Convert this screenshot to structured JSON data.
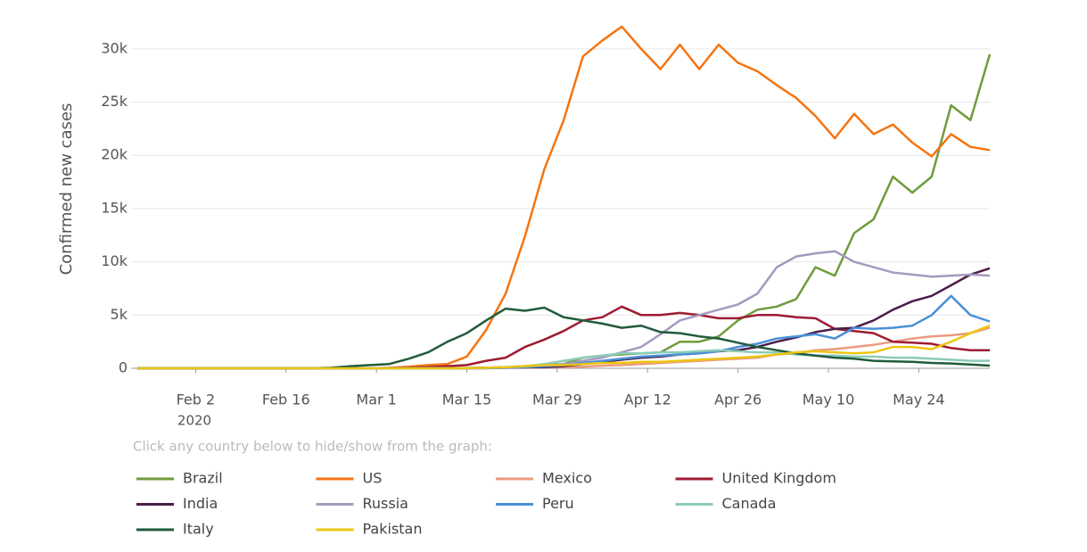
{
  "chart_data": {
    "type": "line",
    "y_label": "Confirmed new cases",
    "legend_hint": "Click any country below to hide/show from the graph:",
    "x_year_label": "2020",
    "x": [
      "2020-01-24",
      "2020-01-27",
      "2020-01-30",
      "2020-02-02",
      "2020-02-05",
      "2020-02-08",
      "2020-02-11",
      "2020-02-14",
      "2020-02-17",
      "2020-02-20",
      "2020-02-23",
      "2020-02-26",
      "2020-02-29",
      "2020-03-03",
      "2020-03-06",
      "2020-03-09",
      "2020-03-12",
      "2020-03-15",
      "2020-03-18",
      "2020-03-21",
      "2020-03-24",
      "2020-03-27",
      "2020-03-30",
      "2020-04-02",
      "2020-04-05",
      "2020-04-08",
      "2020-04-11",
      "2020-04-14",
      "2020-04-17",
      "2020-04-20",
      "2020-04-23",
      "2020-04-26",
      "2020-04-29",
      "2020-05-02",
      "2020-05-05",
      "2020-05-08",
      "2020-05-11",
      "2020-05-14",
      "2020-05-17",
      "2020-05-20",
      "2020-05-23",
      "2020-05-26",
      "2020-05-29",
      "2020-06-01",
      "2020-06-04"
    ],
    "xlim": [
      "2020-01-23",
      "2020-06-04"
    ],
    "xticks": [
      {
        "value": "2020-02-02",
        "label": "Feb 2"
      },
      {
        "value": "2020-02-16",
        "label": "Feb 16"
      },
      {
        "value": "2020-03-01",
        "label": "Mar 1"
      },
      {
        "value": "2020-03-15",
        "label": "Mar 15"
      },
      {
        "value": "2020-03-29",
        "label": "Mar 29"
      },
      {
        "value": "2020-04-12",
        "label": "Apr 12"
      },
      {
        "value": "2020-04-26",
        "label": "Apr 26"
      },
      {
        "value": "2020-05-10",
        "label": "May 10"
      },
      {
        "value": "2020-05-24",
        "label": "May 24"
      }
    ],
    "ylim": [
      0,
      32500
    ],
    "yticks": [
      0,
      {
        "value": 5000,
        "label": "5k"
      },
      {
        "value": 10000,
        "label": "10k"
      },
      {
        "value": 15000,
        "label": "15k"
      },
      {
        "value": 20000,
        "label": "20k"
      },
      {
        "value": 25000,
        "label": "25k"
      },
      {
        "value": 30000,
        "label": "30k"
      }
    ],
    "grid": true,
    "series": [
      {
        "name": "Brazil",
        "color": "#6f9b3c",
        "values": [
          0,
          0,
          0,
          0,
          0,
          0,
          0,
          0,
          0,
          0,
          0,
          0,
          0,
          0,
          0,
          10,
          20,
          30,
          50,
          100,
          200,
          300,
          400,
          1000,
          1200,
          1300,
          1400,
          1500,
          2500,
          2500,
          3000,
          4500,
          5500,
          5800,
          6500,
          9500,
          8700,
          12700,
          14000,
          18000,
          16500,
          18000,
          24700,
          23300,
          29500
        ]
      },
      {
        "name": "US",
        "color": "#f57410",
        "values": [
          0,
          0,
          0,
          0,
          0,
          0,
          0,
          0,
          0,
          0,
          0,
          0,
          0,
          50,
          150,
          300,
          400,
          1100,
          3600,
          7000,
          12400,
          18700,
          23300,
          29300,
          30800,
          32100,
          30000,
          28100,
          30400,
          28100,
          30400,
          28700,
          27900,
          26600,
          25400,
          23700,
          21600,
          23900,
          22000,
          22900,
          21200,
          19900,
          22000,
          20800,
          20500
        ]
      },
      {
        "name": "Mexico",
        "color": "#ec9a80",
        "values": [
          0,
          0,
          0,
          0,
          0,
          0,
          0,
          0,
          0,
          0,
          0,
          0,
          0,
          0,
          0,
          0,
          0,
          0,
          10,
          30,
          50,
          80,
          100,
          150,
          250,
          300,
          400,
          500,
          600,
          700,
          800,
          900,
          1000,
          1300,
          1400,
          1700,
          1800,
          2000,
          2200,
          2500,
          2800,
          3000,
          3100,
          3300,
          3800
        ]
      },
      {
        "name": "United Kingdom",
        "color": "#9e1b32",
        "values": [
          0,
          0,
          0,
          0,
          0,
          0,
          0,
          0,
          0,
          0,
          0,
          0,
          0,
          20,
          50,
          100,
          200,
          300,
          700,
          1000,
          2000,
          2700,
          3500,
          4500,
          4800,
          5800,
          5000,
          5000,
          5200,
          5000,
          4700,
          4700,
          5000,
          5000,
          4800,
          4700,
          3700,
          3500,
          3300,
          2500,
          2400,
          2300,
          1900,
          1700,
          1700
        ]
      },
      {
        "name": "India",
        "color": "#4b1d47",
        "values": [
          0,
          0,
          0,
          0,
          0,
          0,
          0,
          0,
          0,
          0,
          0,
          0,
          0,
          0,
          0,
          5,
          10,
          20,
          40,
          60,
          80,
          100,
          200,
          400,
          600,
          800,
          1000,
          1100,
          1300,
          1400,
          1600,
          1700,
          2000,
          2500,
          2900,
          3400,
          3700,
          3800,
          4500,
          5500,
          6300,
          6800,
          7800,
          8800,
          9400
        ]
      },
      {
        "name": "Russia",
        "color": "#a59ac0",
        "values": [
          0,
          0,
          0,
          0,
          0,
          0,
          0,
          0,
          0,
          0,
          0,
          0,
          0,
          0,
          0,
          0,
          0,
          0,
          10,
          50,
          100,
          200,
          400,
          700,
          1000,
          1500,
          2000,
          3200,
          4500,
          5000,
          5500,
          6000,
          7000,
          9500,
          10500,
          10800,
          11000,
          10000,
          9500,
          9000,
          8800,
          8600,
          8700,
          8800,
          8700
        ]
      },
      {
        "name": "Peru",
        "color": "#4a90d9",
        "values": [
          0,
          0,
          0,
          0,
          0,
          0,
          0,
          0,
          0,
          0,
          0,
          0,
          0,
          0,
          0,
          0,
          0,
          0,
          10,
          50,
          100,
          200,
          300,
          500,
          700,
          900,
          1100,
          1200,
          1300,
          1400,
          1600,
          2000,
          2300,
          2800,
          3000,
          3200,
          2800,
          3800,
          3700,
          3800,
          4000,
          5000,
          6800,
          5000,
          4400
        ]
      },
      {
        "name": "Canada",
        "color": "#8ccbb8",
        "values": [
          0,
          0,
          0,
          0,
          0,
          0,
          0,
          0,
          0,
          0,
          0,
          0,
          0,
          0,
          0,
          0,
          5,
          10,
          30,
          100,
          200,
          400,
          700,
          1000,
          1200,
          1400,
          1400,
          1500,
          1500,
          1600,
          1700,
          1600,
          1500,
          1500,
          1300,
          1200,
          1200,
          1100,
          1100,
          1000,
          1000,
          900,
          800,
          700,
          700
        ]
      },
      {
        "name": "Italy",
        "color": "#215b3c",
        "values": [
          0,
          0,
          0,
          0,
          0,
          0,
          0,
          0,
          0,
          0,
          50,
          200,
          300,
          400,
          900,
          1500,
          2500,
          3300,
          4500,
          5600,
          5400,
          5700,
          4800,
          4500,
          4200,
          3800,
          4000,
          3400,
          3300,
          3000,
          2800,
          2400,
          2000,
          1700,
          1400,
          1200,
          1000,
          900,
          700,
          650,
          600,
          500,
          450,
          350,
          250
        ]
      },
      {
        "name": "Pakistan",
        "color": "#ecc512",
        "values": [
          0,
          0,
          0,
          0,
          0,
          0,
          0,
          0,
          0,
          0,
          0,
          0,
          0,
          0,
          0,
          0,
          0,
          10,
          50,
          100,
          200,
          300,
          300,
          400,
          500,
          500,
          600,
          600,
          700,
          800,
          900,
          1000,
          1100,
          1300,
          1500,
          1600,
          1500,
          1400,
          1500,
          2000,
          2000,
          1800,
          2500,
          3300,
          4000
        ]
      }
    ]
  }
}
